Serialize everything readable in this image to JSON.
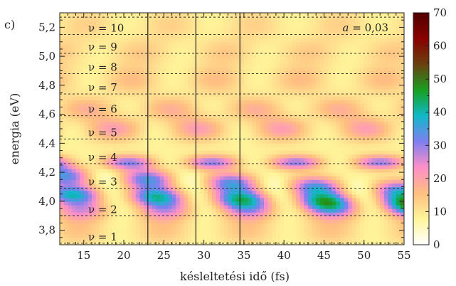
{
  "chart_data": {
    "type": "heatmap",
    "panel_label": "c)",
    "xlabel": "késleltetési idő (fs)",
    "ylabel": "energia (eV)",
    "xlim": [
      12,
      55
    ],
    "ylim": [
      3.7,
      5.3
    ],
    "xticks": [
      15,
      20,
      25,
      30,
      35,
      40,
      45,
      50,
      55
    ],
    "xtick_labels": [
      "15",
      "20",
      "25",
      "30",
      "35",
      "40",
      "45",
      "50",
      "55"
    ],
    "yticks": [
      3.8,
      4.0,
      4.2,
      4.4,
      4.6,
      4.8,
      5.0,
      5.2
    ],
    "ytick_labels": [
      "3,8",
      "4,0",
      "4,2",
      "4,4",
      "4,6",
      "4,8",
      "5,0",
      "5,2"
    ],
    "annotation": {
      "var": "a",
      "text": " = 0,03"
    },
    "vertical_lines_x": [
      23,
      29,
      34.5
    ],
    "levels": [
      {
        "label": "ν = 1",
        "energy": 3.71
      },
      {
        "label": "ν = 2",
        "energy": 3.9
      },
      {
        "label": "ν = 3",
        "energy": 4.09
      },
      {
        "label": "ν = 4",
        "energy": 4.26
      },
      {
        "label": "ν = 5",
        "energy": 4.43
      },
      {
        "label": "ν = 6",
        "energy": 4.59
      },
      {
        "label": "ν = 7",
        "energy": 4.74
      },
      {
        "label": "ν = 8",
        "energy": 4.88
      },
      {
        "label": "ν = 9",
        "energy": 5.02
      },
      {
        "label": "ν = 10",
        "energy": 5.15
      },
      {
        "label": "",
        "energy": 5.27
      }
    ],
    "colorbar": {
      "range": [
        0,
        70
      ],
      "ticks": [
        0,
        10,
        20,
        30,
        40,
        50,
        60,
        70
      ],
      "tick_labels": [
        "0",
        "10",
        "20",
        "30",
        "40",
        "50",
        "60",
        "70"
      ],
      "colors": [
        "#ffffff",
        "#fff59a",
        "#ffbf80",
        "#ff8fc8",
        "#7f7ff0",
        "#10b8c8",
        "#18a020",
        "#6a4010",
        "#8a0000",
        "#500000"
      ]
    }
  }
}
